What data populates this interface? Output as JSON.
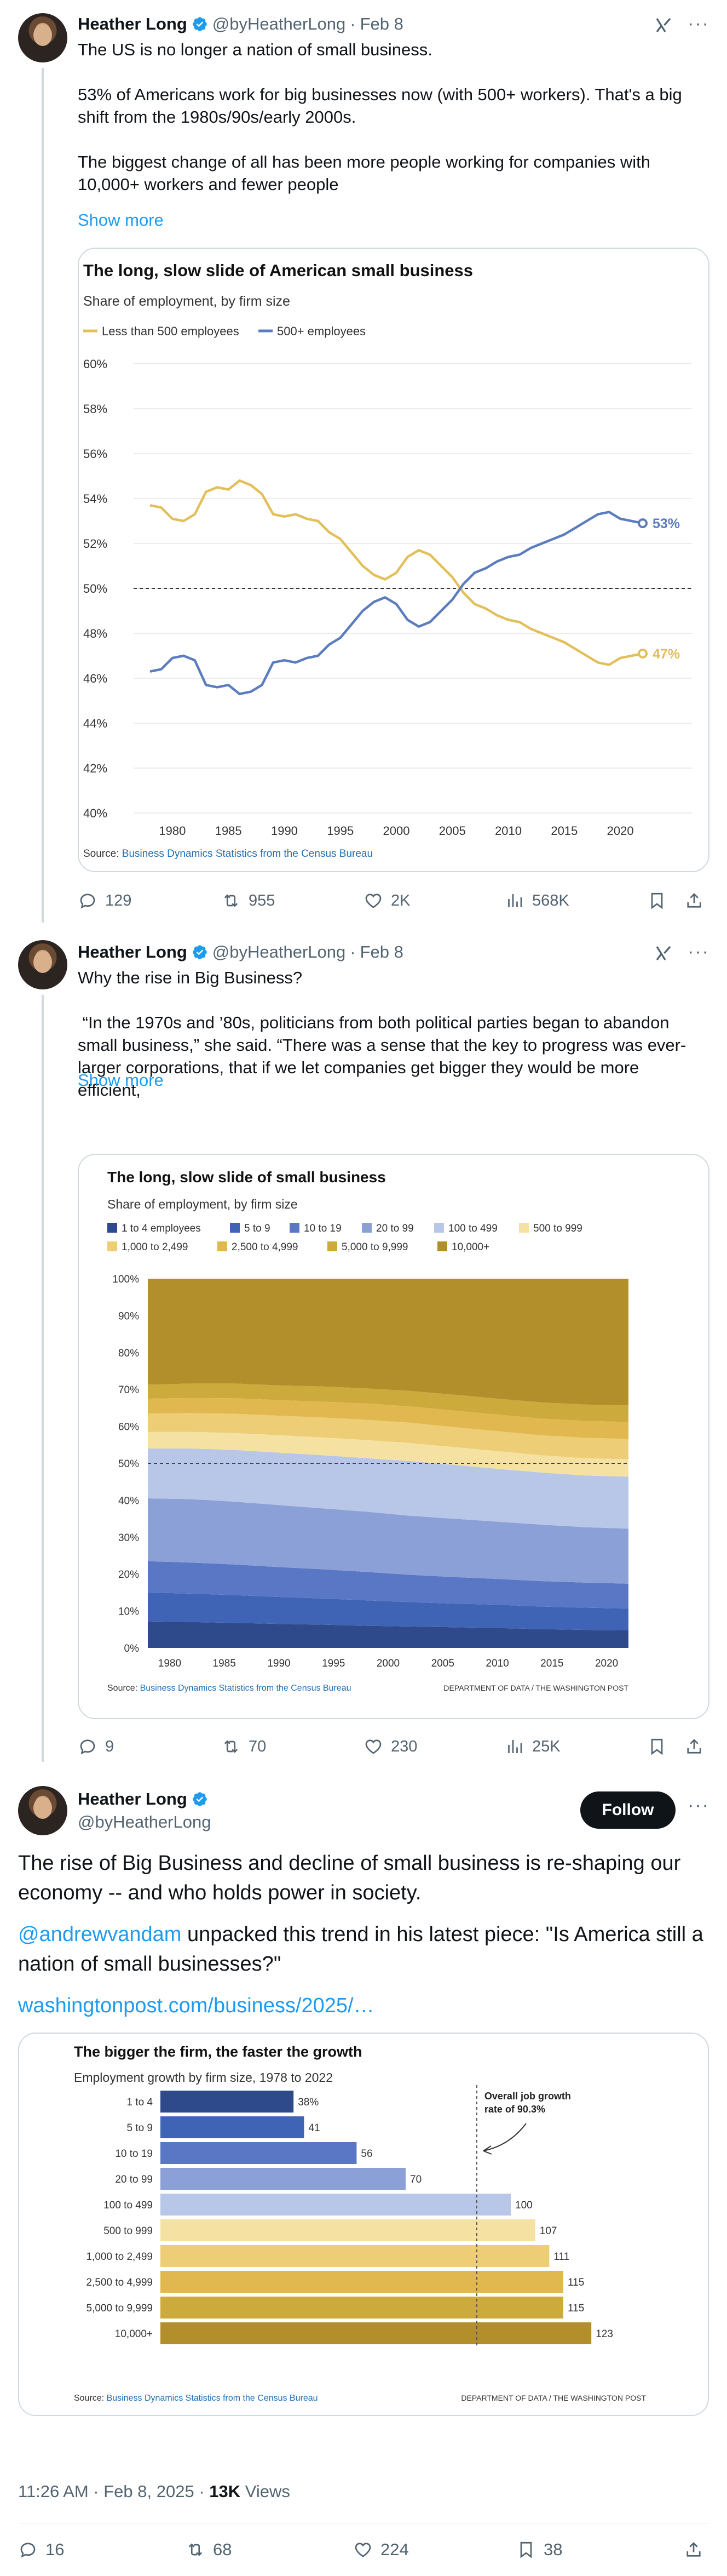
{
  "author": {
    "name": "Heather Long",
    "handle": "@byHeatherLong",
    "separator": "·"
  },
  "tweet1": {
    "date": "Feb 8",
    "text": "The US is no longer a nation of small business.\n\n53% of Americans work for big businesses now (with 500+ workers). That's a big shift from the 1980s/90s/early 2000s.\n\nThe biggest change of all has been more people working for companies with 10,000+ workers and fewer people",
    "show_more": "Show more",
    "stats": {
      "replies": "129",
      "reposts": "955",
      "likes": "2K",
      "views": "568K"
    }
  },
  "tweet2": {
    "date": "Feb 8",
    "text": "Why the rise in Big Business?\n\n “In the 1970s and ’80s, politicians from both political parties began to abandon small business,” she said. “There was a sense that the key to progress was ever-larger corporations, that if we let companies get bigger they would be more efficient,",
    "show_more": "Show more",
    "stats": {
      "replies": "9",
      "reposts": "70",
      "likes": "230",
      "views": "25K"
    }
  },
  "tweet3": {
    "follow_label": "Follow",
    "para1": "The rise of Big Business and decline of small business is re-shaping our economy -- and who holds power in society.",
    "mention": "@andrewvandam",
    "para2_rest": " unpacked this trend in his latest piece: \"Is America still a nation of small businesses?\"",
    "url": "washingtonpost.com/business/2025/…",
    "timestamp": "11:26 AM · Feb 8, 2025 · ",
    "views_count": "13K",
    "views_label": " Views",
    "stats": {
      "replies": "16",
      "reposts": "68",
      "likes": "224",
      "bookmarks": "38"
    }
  },
  "chart_data": [
    {
      "type": "line",
      "title": "The long, slow slide of American small business",
      "subtitle": "Share of employment, by firm size",
      "legend_placement": "top-left",
      "source_prefix": "Source: ",
      "source_link": "Business Dynamics Statistics from the Census Bureau",
      "x": [
        1978,
        1979,
        1980,
        1981,
        1982,
        1983,
        1984,
        1985,
        1986,
        1987,
        1988,
        1989,
        1990,
        1991,
        1992,
        1993,
        1994,
        1995,
        1996,
        1997,
        1998,
        1999,
        2000,
        2001,
        2002,
        2003,
        2004,
        2005,
        2006,
        2007,
        2008,
        2009,
        2010,
        2011,
        2012,
        2013,
        2014,
        2015,
        2016,
        2017,
        2018,
        2019,
        2020,
        2021,
        2022
      ],
      "x_ticks": [
        "1980",
        "1985",
        "1990",
        "1995",
        "2000",
        "2005",
        "2010",
        "2015",
        "2020"
      ],
      "y_ticks": [
        "60%",
        "58%",
        "56%",
        "54%",
        "52%",
        "50%",
        "48%",
        "46%",
        "44%",
        "42%",
        "40%"
      ],
      "ylim": [
        40,
        60
      ],
      "reference_line": 50,
      "grid": true,
      "series": [
        {
          "name": "Less than 500 employees",
          "color": "#e3bf5a",
          "end_label": "47%",
          "values": [
            53.7,
            53.6,
            53.1,
            53.0,
            53.3,
            54.3,
            54.5,
            54.4,
            54.8,
            54.6,
            54.2,
            53.3,
            53.2,
            53.3,
            53.1,
            53.0,
            52.5,
            52.2,
            51.6,
            51.0,
            50.6,
            50.4,
            50.7,
            51.4,
            51.7,
            51.5,
            51.0,
            50.5,
            49.8,
            49.3,
            49.1,
            48.8,
            48.6,
            48.5,
            48.2,
            48.0,
            47.8,
            47.6,
            47.3,
            47.0,
            46.7,
            46.6,
            46.9,
            47.0,
            47.1
          ]
        },
        {
          "name": "500+ employees",
          "color": "#5b7dbd",
          "end_label": "53%",
          "values": [
            46.3,
            46.4,
            46.9,
            47.0,
            46.8,
            45.7,
            45.6,
            45.7,
            45.3,
            45.4,
            45.7,
            46.7,
            46.8,
            46.7,
            46.9,
            47.0,
            47.5,
            47.8,
            48.4,
            49.0,
            49.4,
            49.6,
            49.3,
            48.6,
            48.3,
            48.5,
            49.0,
            49.5,
            50.2,
            50.7,
            50.9,
            51.2,
            51.4,
            51.5,
            51.8,
            52.0,
            52.2,
            52.4,
            52.7,
            53.0,
            53.3,
            53.4,
            53.1,
            53.0,
            52.9
          ]
        }
      ]
    },
    {
      "type": "area",
      "title": "The long, slow slide of small business",
      "subtitle": "Share of employment, by firm size",
      "legend_placement": "top-left",
      "source_prefix": "Source: ",
      "source_link": "Business Dynamics Statistics from the Census Bureau",
      "credit": "DEPARTMENT OF DATA / THE WASHINGTON POST",
      "x": [
        1978,
        1982,
        1986,
        1990,
        1994,
        1998,
        2002,
        2006,
        2010,
        2014,
        2018,
        2022
      ],
      "x_ticks": [
        "1980",
        "1985",
        "1990",
        "1995",
        "2000",
        "2005",
        "2010",
        "2015",
        "2020"
      ],
      "y_ticks": [
        "100%",
        "90%",
        "80%",
        "70%",
        "60%",
        "50%",
        "40%",
        "30%",
        "20%",
        "10%",
        "0%"
      ],
      "ylim": [
        0,
        100
      ],
      "reference_line": 50,
      "stacked": true,
      "series": [
        {
          "name": "1 to 4 employees",
          "color": "#2f4a8a",
          "values": [
            7.2,
            7.0,
            6.8,
            6.5,
            6.3,
            6.0,
            5.8,
            5.6,
            5.4,
            5.1,
            4.9,
            4.8
          ]
        },
        {
          "name": "5 to 9",
          "color": "#3f63b5",
          "values": [
            7.8,
            7.7,
            7.5,
            7.3,
            7.1,
            6.9,
            6.6,
            6.4,
            6.3,
            6.1,
            6.0,
            5.9
          ]
        },
        {
          "name": "10 to 19",
          "color": "#5977c4",
          "values": [
            8.5,
            8.4,
            8.3,
            8.1,
            7.9,
            7.7,
            7.4,
            7.2,
            7.0,
            6.9,
            6.8,
            6.7
          ]
        },
        {
          "name": "20 to 99",
          "color": "#8ba0d6",
          "values": [
            17.0,
            17.2,
            17.0,
            16.8,
            16.5,
            16.3,
            16.0,
            15.8,
            15.5,
            15.3,
            15.0,
            14.9
          ]
        },
        {
          "name": "100 to 499",
          "color": "#b8c6e8",
          "values": [
            13.5,
            13.7,
            14.0,
            14.2,
            14.4,
            14.5,
            14.8,
            14.6,
            14.3,
            14.1,
            14.0,
            14.1
          ]
        },
        {
          "name": "500 to 999",
          "color": "#f5e2a3",
          "values": [
            4.5,
            4.5,
            4.6,
            4.7,
            4.8,
            4.9,
            4.9,
            4.8,
            4.8,
            4.7,
            4.7,
            4.7
          ]
        },
        {
          "name": "1,000 to 2,499",
          "color": "#edcd75",
          "values": [
            5.0,
            5.1,
            5.2,
            5.3,
            5.4,
            5.5,
            5.5,
            5.4,
            5.4,
            5.4,
            5.5,
            5.5
          ]
        },
        {
          "name": "2,500 to 4,999",
          "color": "#e1b84f",
          "values": [
            4.0,
            4.1,
            4.2,
            4.2,
            4.3,
            4.4,
            4.4,
            4.5,
            4.5,
            4.5,
            4.6,
            4.6
          ]
        },
        {
          "name": "5,000 to 9,999",
          "color": "#ccaa3c",
          "values": [
            3.8,
            3.9,
            4.0,
            4.0,
            4.1,
            4.1,
            4.2,
            4.3,
            4.3,
            4.4,
            4.4,
            4.5
          ]
        },
        {
          "name": "10,000+",
          "color": "#b38f2c",
          "values": [
            28.7,
            28.4,
            28.4,
            28.9,
            29.2,
            29.7,
            30.4,
            31.4,
            32.5,
            33.5,
            34.1,
            34.3
          ]
        }
      ]
    },
    {
      "type": "bar",
      "orientation": "horizontal",
      "title": "The bigger the firm, the faster the growth",
      "subtitle": "Employment growth by firm size, 1978 to 2022",
      "source_prefix": "Source: ",
      "source_link": "Business Dynamics Statistics from the Census Bureau",
      "credit": "DEPARTMENT OF DATA / THE WASHINGTON POST",
      "categories": [
        "1 to 4",
        "5 to 9",
        "10 to 19",
        "20 to 99",
        "100 to 499",
        "500 to 999",
        "1,000 to 2,499",
        "2,500 to 4,999",
        "5,000 to 9,999",
        "10,000+"
      ],
      "values": [
        38,
        41,
        56,
        70,
        100,
        107,
        111,
        115,
        115,
        123
      ],
      "value_labels": [
        "38%",
        "41",
        "56",
        "70",
        "100",
        "107",
        "111",
        "115",
        "115",
        "123"
      ],
      "colors": [
        "#2f4a8a",
        "#3f63b5",
        "#5977c4",
        "#8ba0d6",
        "#b8c6e8",
        "#f5e2a3",
        "#edcd75",
        "#e1b84f",
        "#ccaa3c",
        "#b38f2c"
      ],
      "reference_value": 90.3,
      "annotation": [
        "Overall job growth",
        "rate of 90.3%"
      ],
      "xlim": [
        0,
        130
      ]
    }
  ]
}
